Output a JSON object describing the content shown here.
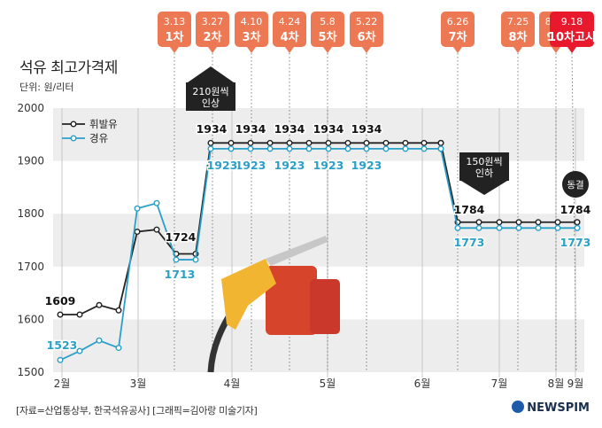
{
  "title": "석유 최고가격제",
  "unit": "단위: 원/리터",
  "source": "[자료=산업통상부, 한국석유공사] [그래픽=김아랑 미술기자]",
  "logo": "NEWSPIM",
  "colors": {
    "gasoline": "#222222",
    "diesel": "#2aa0c9",
    "badge": "#ec7854",
    "badge_current": "#e8192c"
  },
  "chart_data": {
    "type": "line",
    "title": "석유 최고가격제",
    "ylabel": "단위: 원/리터",
    "ylim": [
      1500,
      2000
    ],
    "yticks": [
      1500,
      1600,
      1700,
      1800,
      1900,
      2000
    ],
    "x_month_labels": [
      "2월",
      "3월",
      "4월",
      "5월",
      "6월",
      "7월",
      "8월",
      "9월"
    ],
    "legend": [
      "휘발유",
      "경유"
    ],
    "series": [
      {
        "name": "휘발유",
        "values": [
          1609,
          1609,
          1627,
          1617,
          1766,
          1770,
          1724,
          1724,
          1934,
          1934,
          1934,
          1934,
          1934,
          1934,
          1934,
          1934,
          1934,
          1934,
          1934,
          1934,
          1934,
          1934,
          1934,
          1784,
          1784,
          1784,
          1784,
          1784,
          1784,
          1784,
          1784
        ]
      },
      {
        "name": "경유",
        "values": [
          1523,
          1540,
          1560,
          1546,
          1810,
          1820,
          1713,
          1713,
          1923,
          1923,
          1923,
          1923,
          1923,
          1923,
          1923,
          1923,
          1923,
          1923,
          1923,
          1923,
          1923,
          1923,
          1923,
          1773,
          1773,
          1773,
          1773,
          1773,
          1773,
          1773,
          1773
        ]
      }
    ],
    "data_labels": [
      {
        "series": "휘발유",
        "text": "1609"
      },
      {
        "series": "휘발유",
        "text": "1724"
      },
      {
        "series": "휘발유",
        "text": "1934"
      },
      {
        "series": "휘발유",
        "text": "1934"
      },
      {
        "series": "휘발유",
        "text": "1934"
      },
      {
        "series": "휘발유",
        "text": "1934"
      },
      {
        "series": "휘발유",
        "text": "1934"
      },
      {
        "series": "휘발유",
        "text": "1934"
      },
      {
        "series": "휘발유",
        "text": "1784"
      },
      {
        "series": "휘발유",
        "text": "1784"
      },
      {
        "series": "경유",
        "text": "1523"
      },
      {
        "series": "경유",
        "text": "1713"
      },
      {
        "series": "경유",
        "text": "1923"
      },
      {
        "series": "경유",
        "text": "1923"
      },
      {
        "series": "경유",
        "text": "1923"
      },
      {
        "series": "경유",
        "text": "1923"
      },
      {
        "series": "경유",
        "text": "1923"
      },
      {
        "series": "경유",
        "text": "1923"
      },
      {
        "series": "경유",
        "text": "1773"
      },
      {
        "series": "경유",
        "text": "1773"
      }
    ],
    "rounds": [
      {
        "date": "3.13",
        "label": "1차"
      },
      {
        "date": "3.27",
        "label": "2차"
      },
      {
        "date": "4.10",
        "label": "3차"
      },
      {
        "date": "4.24",
        "label": "4차"
      },
      {
        "date": "5.8",
        "label": "5차"
      },
      {
        "date": "5.22",
        "label": "6차"
      },
      {
        "date": "6.26",
        "label": "7차"
      },
      {
        "date": "7.25",
        "label": "8차"
      },
      {
        "date": "8.21",
        "label": "9차"
      },
      {
        "date": "9.18",
        "label": "10차고시"
      }
    ],
    "annotations": [
      {
        "text1": "210원씩",
        "text2": "인상",
        "direction": "up"
      },
      {
        "text1": "150원씩",
        "text2": "인하",
        "direction": "down"
      },
      {
        "text1": "동결",
        "direction": "none"
      }
    ]
  }
}
